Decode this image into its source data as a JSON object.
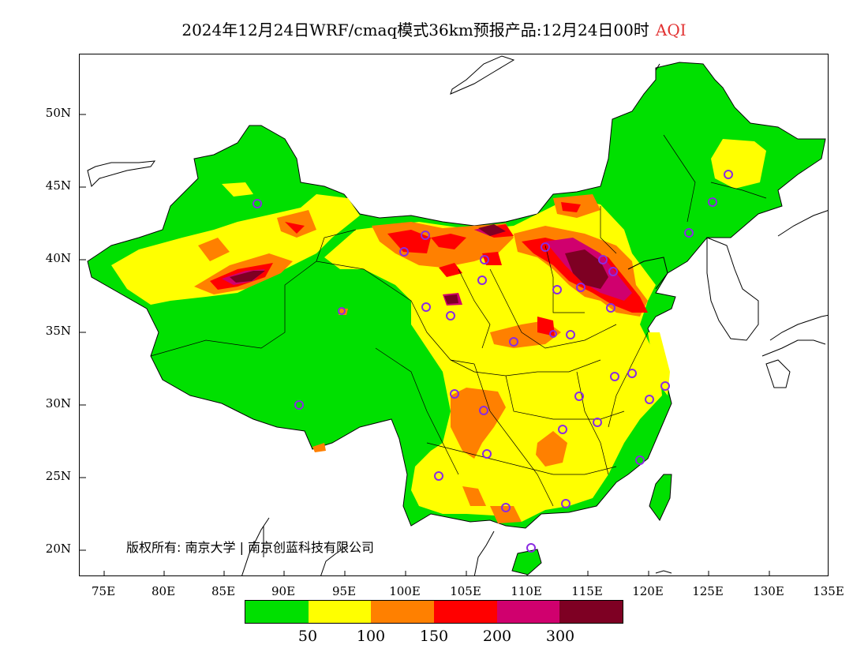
{
  "title": {
    "main": "2024年12月24日WRF/cmaq模式36km预报产品:12月24日00时",
    "variable": "AQI"
  },
  "y_axis": [
    "50N",
    "45N",
    "40N",
    "35N",
    "30N",
    "25N",
    "20N"
  ],
  "x_axis": [
    "75E",
    "80E",
    "85E",
    "90E",
    "95E",
    "100E",
    "105E",
    "110E",
    "115E",
    "120E",
    "125E",
    "130E",
    "135E"
  ],
  "copyright": "版权所有: 南京大学 | 南京创蓝科技有限公司",
  "legend": {
    "colors": [
      "#00e000",
      "#ffff00",
      "#ff8000",
      "#ff0000",
      "#d0006e",
      "#7e0023"
    ],
    "labels": [
      "50",
      "100",
      "150",
      "200",
      "300"
    ]
  },
  "map_colors": {
    "good": "#00e000",
    "moderate": "#ffff00",
    "usg": "#ff8000",
    "unhealthy": "#ff0000",
    "very_unhealthy": "#d0006e",
    "hazardous": "#7e0023",
    "station_marker": "#8a2be2"
  }
}
